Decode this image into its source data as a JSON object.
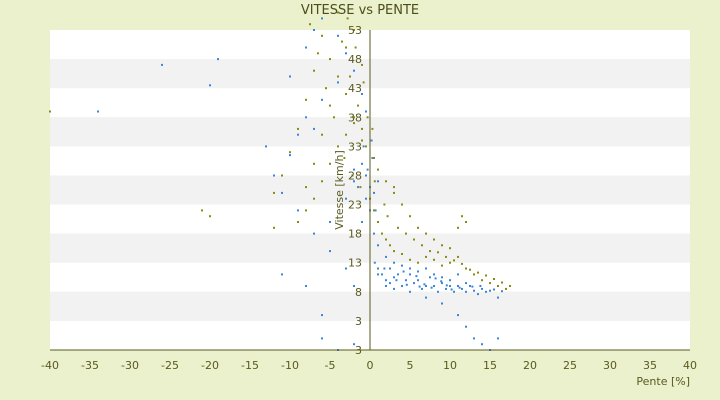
{
  "chart_data": {
    "type": "scatter",
    "title": "VITESSE vs PENTE",
    "xlabel": "Pente [%]",
    "ylabel": "Vitesse [km/h]",
    "xlim": [
      -40,
      40
    ],
    "xticks": [
      -40,
      -35,
      -30,
      -25,
      -20,
      -15,
      -10,
      -5,
      0,
      5,
      10,
      15,
      20,
      25,
      30,
      35,
      40
    ],
    "ytick_labels": [
      "3",
      "3",
      "8",
      "13",
      "18",
      "23",
      "28",
      "33",
      "38",
      "43",
      "48",
      "53"
    ],
    "grid": "horizontal alternating bands",
    "legend": "none",
    "colors": {
      "background": "#eaf1cc",
      "band_light": "#ffffff",
      "band_dark": "#f2f2f2",
      "series_a": "#3a86d8",
      "series_b": "#8a8a10"
    },
    "series": [
      {
        "color": "#3a86d8",
        "points": [
          [
            -26,
            47
          ],
          [
            -19,
            48
          ],
          [
            -20,
            43.5
          ],
          [
            -34,
            39
          ],
          [
            -13,
            33
          ],
          [
            -10,
            31.5
          ],
          [
            -9,
            35
          ],
          [
            -8,
            38
          ],
          [
            -10,
            45
          ],
          [
            -8,
            50
          ],
          [
            -7,
            53
          ],
          [
            -6,
            55
          ],
          [
            -4,
            52
          ],
          [
            -3,
            49
          ],
          [
            -2,
            46
          ],
          [
            -1,
            42
          ],
          [
            -0.5,
            39
          ],
          [
            -4,
            44
          ],
          [
            -6,
            41
          ],
          [
            -7,
            36
          ],
          [
            -12,
            28
          ],
          [
            -11,
            25
          ],
          [
            -9,
            22
          ],
          [
            -7,
            18
          ],
          [
            -5,
            15
          ],
          [
            -3,
            12
          ],
          [
            -2,
            9
          ],
          [
            -6,
            4
          ],
          [
            -4,
            3
          ],
          [
            -2,
            3.5
          ],
          [
            -11,
            11
          ],
          [
            -8,
            9
          ],
          [
            -6,
            6
          ],
          [
            -5,
            20
          ],
          [
            -3,
            24
          ],
          [
            -2,
            27
          ],
          [
            -1,
            30
          ],
          [
            -0.5,
            28
          ],
          [
            0,
            26
          ],
          [
            -0.5,
            24
          ],
          [
            0,
            22
          ],
          [
            -1,
            20
          ],
          [
            0.5,
            25
          ],
          [
            1,
            27
          ],
          [
            -0.3,
            29
          ],
          [
            0.3,
            31
          ],
          [
            -0.8,
            33
          ],
          [
            0.2,
            34
          ],
          [
            -1.5,
            26
          ],
          [
            -2,
            29
          ],
          [
            1,
            12
          ],
          [
            1.5,
            11
          ],
          [
            2,
            10
          ],
          [
            2.5,
            9.5
          ],
          [
            3,
            10.5
          ],
          [
            3.5,
            11
          ],
          [
            4,
            9
          ],
          [
            4.5,
            10
          ],
          [
            5,
            11
          ],
          [
            5.5,
            9.5
          ],
          [
            6,
            10
          ],
          [
            6.5,
            8.5
          ],
          [
            7,
            9
          ],
          [
            7.5,
            10.5
          ],
          [
            8,
            9
          ],
          [
            8.5,
            8
          ],
          [
            9,
            9.5
          ],
          [
            9.5,
            8.5
          ],
          [
            10,
            9
          ],
          [
            10.5,
            8
          ],
          [
            11,
            9
          ],
          [
            11.5,
            8.5
          ],
          [
            12,
            8
          ],
          [
            12.5,
            9
          ],
          [
            13,
            8.2
          ],
          [
            13.5,
            7.8
          ],
          [
            14,
            8.5
          ],
          [
            14.5,
            8
          ],
          [
            15,
            8.2
          ],
          [
            16,
            7.5
          ],
          [
            3,
            13
          ],
          [
            4,
            12.5
          ],
          [
            5,
            12
          ],
          [
            6,
            11.5
          ],
          [
            7,
            12
          ],
          [
            8,
            11
          ],
          [
            9,
            10.5
          ],
          [
            10,
            10
          ],
          [
            11,
            11
          ],
          [
            12,
            9.5
          ],
          [
            2,
            14
          ],
          [
            1,
            16
          ],
          [
            0.5,
            18
          ],
          [
            1,
            20
          ],
          [
            0.7,
            22
          ],
          [
            2,
            9
          ],
          [
            3,
            8.5
          ],
          [
            5,
            8
          ],
          [
            7,
            7.5
          ],
          [
            9,
            7
          ],
          [
            11,
            6
          ],
          [
            12,
            5
          ],
          [
            13,
            4
          ],
          [
            14,
            3.5
          ],
          [
            15,
            3
          ],
          [
            16,
            4
          ],
          [
            1,
            11
          ],
          [
            0.6,
            13
          ],
          [
            1.8,
            12
          ],
          [
            4.2,
            11.5
          ],
          [
            5.8,
            10.7
          ],
          [
            6.8,
            9.3
          ],
          [
            7.7,
            8.7
          ],
          [
            8.9,
            9.8
          ],
          [
            10.2,
            8.4
          ],
          [
            2.5,
            12
          ],
          [
            3.3,
            10
          ],
          [
            4.6,
            9.2
          ],
          [
            6.2,
            8.9
          ],
          [
            8.2,
            10.3
          ],
          [
            9.6,
            9.1
          ],
          [
            11.2,
            8.7
          ],
          [
            12.8,
            8.9
          ],
          [
            13.8,
            9
          ],
          [
            15.5,
            8.4
          ],
          [
            16.5,
            8.1
          ]
        ]
      },
      {
        "color": "#8a8a10",
        "points": [
          [
            -40,
            39
          ],
          [
            -21,
            22
          ],
          [
            -20,
            21
          ],
          [
            -12,
            19
          ],
          [
            -9,
            20
          ],
          [
            -8,
            26
          ],
          [
            -7,
            30
          ],
          [
            -6,
            35
          ],
          [
            -5,
            40
          ],
          [
            -4,
            45
          ],
          [
            -3,
            50
          ],
          [
            -2,
            53
          ],
          [
            -4,
            56
          ],
          [
            -6,
            57
          ],
          [
            -5,
            48
          ],
          [
            -3,
            42
          ],
          [
            -2,
            37
          ],
          [
            -1,
            34
          ],
          [
            -1.5,
            40
          ],
          [
            -2.5,
            45
          ],
          [
            -3.5,
            51
          ],
          [
            -1,
            47
          ],
          [
            -6,
            52
          ],
          [
            -7,
            46
          ],
          [
            -8,
            41
          ],
          [
            -9,
            36
          ],
          [
            -10,
            32
          ],
          [
            -11,
            28
          ],
          [
            -12,
            25
          ],
          [
            0,
            24
          ],
          [
            0.5,
            22
          ],
          [
            1,
            20
          ],
          [
            1.5,
            18
          ],
          [
            2,
            17
          ],
          [
            2.5,
            16
          ],
          [
            3,
            15
          ],
          [
            4,
            14.5
          ],
          [
            5,
            13.5
          ],
          [
            6,
            13
          ],
          [
            7,
            14
          ],
          [
            8,
            13.5
          ],
          [
            9,
            12.5
          ],
          [
            10,
            13
          ],
          [
            11,
            14
          ],
          [
            12,
            12
          ],
          [
            13,
            11
          ],
          [
            14,
            10
          ],
          [
            15,
            9.5
          ],
          [
            16,
            9
          ],
          [
            17,
            8.5
          ],
          [
            17.5,
            9
          ],
          [
            11,
            19
          ],
          [
            12,
            20
          ],
          [
            11.5,
            21
          ],
          [
            3,
            25
          ],
          [
            4,
            23
          ],
          [
            5,
            21
          ],
          [
            6,
            19
          ],
          [
            7,
            18
          ],
          [
            8,
            17
          ],
          [
            9,
            16
          ],
          [
            10,
            15.5
          ],
          [
            2,
            27
          ],
          [
            3,
            26
          ],
          [
            1,
            29
          ],
          [
            0.5,
            31
          ],
          [
            -0.5,
            33
          ],
          [
            -1,
            36
          ],
          [
            -2,
            38
          ],
          [
            -3,
            35
          ],
          [
            -4,
            33
          ],
          [
            -5,
            30
          ],
          [
            -6,
            27
          ],
          [
            -7,
            24
          ],
          [
            -8,
            22
          ],
          [
            0.3,
            36
          ],
          [
            -0.3,
            38
          ],
          [
            0.6,
            27
          ],
          [
            1.8,
            23
          ],
          [
            2.2,
            21
          ],
          [
            3.5,
            19
          ],
          [
            4.5,
            18
          ],
          [
            5.5,
            17
          ],
          [
            6.5,
            16
          ],
          [
            7.5,
            15
          ],
          [
            8.5,
            14.8
          ],
          [
            9.5,
            14
          ],
          [
            10.5,
            13.4
          ],
          [
            11.5,
            12.8
          ],
          [
            12.5,
            11.8
          ],
          [
            13.5,
            11.3
          ],
          [
            14.5,
            10.8
          ],
          [
            15.5,
            10.2
          ],
          [
            16.5,
            9.6
          ],
          [
            -2.8,
            55
          ],
          [
            -1.8,
            50
          ],
          [
            -0.8,
            44
          ],
          [
            -4.5,
            38
          ],
          [
            -5.5,
            43
          ],
          [
            -6.5,
            49
          ],
          [
            -7.5,
            54
          ],
          [
            -3.2,
            31
          ],
          [
            -2.2,
            28
          ],
          [
            -1.2,
            26
          ]
        ]
      }
    ]
  }
}
